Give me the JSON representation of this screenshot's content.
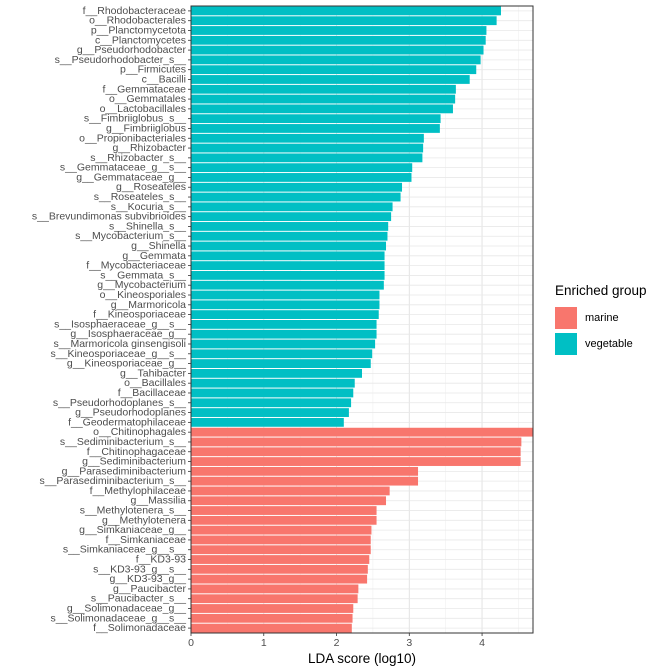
{
  "chart_data": {
    "type": "bar",
    "orientation": "horizontal",
    "xlabel": "LDA score (log10)",
    "ylabel": "",
    "xlim": [
      0,
      4.7
    ],
    "xticks": [
      0,
      1,
      2,
      3,
      4
    ],
    "grid": true,
    "legend": {
      "title": "Enriched group",
      "position": "right",
      "entries": [
        {
          "name": "marine",
          "color": "#F8766D"
        },
        {
          "name": "vegetable",
          "color": "#00BFC4"
        }
      ]
    },
    "bars": [
      {
        "label": "f__Rhodobacteraceae",
        "value": 4.26,
        "group": "vegetable"
      },
      {
        "label": "o__Rhodobacterales",
        "value": 4.2,
        "group": "vegetable"
      },
      {
        "label": "p__Planctomycetota",
        "value": 4.06,
        "group": "vegetable"
      },
      {
        "label": "c__Planctomycetes",
        "value": 4.05,
        "group": "vegetable"
      },
      {
        "label": "g__Pseudorhodobacter",
        "value": 4.02,
        "group": "vegetable"
      },
      {
        "label": "s__Pseudorhodobacter_s__",
        "value": 3.98,
        "group": "vegetable"
      },
      {
        "label": "p__Firmicutes",
        "value": 3.92,
        "group": "vegetable"
      },
      {
        "label": "c__Bacilli",
        "value": 3.83,
        "group": "vegetable"
      },
      {
        "label": "f__Gemmataceae",
        "value": 3.64,
        "group": "vegetable"
      },
      {
        "label": "o__Gemmatales",
        "value": 3.63,
        "group": "vegetable"
      },
      {
        "label": "o__Lactobacillales",
        "value": 3.6,
        "group": "vegetable"
      },
      {
        "label": "s__Fimbriiglobus_s__",
        "value": 3.43,
        "group": "vegetable"
      },
      {
        "label": "g__Fimbriiglobus",
        "value": 3.42,
        "group": "vegetable"
      },
      {
        "label": "o__Propionibacteriales",
        "value": 3.2,
        "group": "vegetable"
      },
      {
        "label": "g__Rhizobacter",
        "value": 3.19,
        "group": "vegetable"
      },
      {
        "label": "s__Rhizobacter_s__",
        "value": 3.18,
        "group": "vegetable"
      },
      {
        "label": "s__Gemmataceae_g__s__",
        "value": 3.04,
        "group": "vegetable"
      },
      {
        "label": "g__Gemmataceae_g__",
        "value": 3.03,
        "group": "vegetable"
      },
      {
        "label": "g__Roseateles",
        "value": 2.9,
        "group": "vegetable"
      },
      {
        "label": "s__Roseateles_s__",
        "value": 2.88,
        "group": "vegetable"
      },
      {
        "label": "s__Kocuria_s__",
        "value": 2.77,
        "group": "vegetable"
      },
      {
        "label": "s__Brevundimonas subvibrioides",
        "value": 2.75,
        "group": "vegetable"
      },
      {
        "label": "s__Shinella_s__",
        "value": 2.71,
        "group": "vegetable"
      },
      {
        "label": "s__Mycobacterium_s__",
        "value": 2.7,
        "group": "vegetable"
      },
      {
        "label": "g__Shinella",
        "value": 2.68,
        "group": "vegetable"
      },
      {
        "label": "g__Gemmata",
        "value": 2.66,
        "group": "vegetable"
      },
      {
        "label": "f__Mycobacteriaceae",
        "value": 2.66,
        "group": "vegetable"
      },
      {
        "label": "s__Gemmata_s__",
        "value": 2.66,
        "group": "vegetable"
      },
      {
        "label": "g__Mycobacterium",
        "value": 2.65,
        "group": "vegetable"
      },
      {
        "label": "o__Kineosporiales",
        "value": 2.59,
        "group": "vegetable"
      },
      {
        "label": "g__Marmoricola",
        "value": 2.59,
        "group": "vegetable"
      },
      {
        "label": "f__Kineosporiaceae",
        "value": 2.58,
        "group": "vegetable"
      },
      {
        "label": "s__Isosphaeraceae_g__s__",
        "value": 2.55,
        "group": "vegetable"
      },
      {
        "label": "g__Isosphaeraceae_g__",
        "value": 2.55,
        "group": "vegetable"
      },
      {
        "label": "s__Marmoricola ginsengisoli",
        "value": 2.53,
        "group": "vegetable"
      },
      {
        "label": "s__Kineosporiaceae_g__s__",
        "value": 2.49,
        "group": "vegetable"
      },
      {
        "label": "g__Kineosporiaceae_g__",
        "value": 2.47,
        "group": "vegetable"
      },
      {
        "label": "g__Tahibacter",
        "value": 2.35,
        "group": "vegetable"
      },
      {
        "label": "o__Bacillales",
        "value": 2.25,
        "group": "vegetable"
      },
      {
        "label": "f__Bacillaceae",
        "value": 2.23,
        "group": "vegetable"
      },
      {
        "label": "s__Pseudorhodoplanes_s__",
        "value": 2.2,
        "group": "vegetable"
      },
      {
        "label": "g__Pseudorhodoplanes",
        "value": 2.17,
        "group": "vegetable"
      },
      {
        "label": "f__Geodermatophilaceae",
        "value": 2.1,
        "group": "vegetable"
      },
      {
        "label": "o__Chitinophagales",
        "value": 4.7,
        "group": "marine"
      },
      {
        "label": "s__Sediminibacterium_s__",
        "value": 4.54,
        "group": "marine"
      },
      {
        "label": "f__Chitinophagaceae",
        "value": 4.53,
        "group": "marine"
      },
      {
        "label": "g__Sediminibacterium",
        "value": 4.53,
        "group": "marine"
      },
      {
        "label": "g__Parasediminibacterium",
        "value": 3.12,
        "group": "marine"
      },
      {
        "label": "s__Parasediminibacterium_s__",
        "value": 3.12,
        "group": "marine"
      },
      {
        "label": "f__Methylophilaceae",
        "value": 2.73,
        "group": "marine"
      },
      {
        "label": "g__Massilia",
        "value": 2.68,
        "group": "marine"
      },
      {
        "label": "s__Methylotenera_s__",
        "value": 2.55,
        "group": "marine"
      },
      {
        "label": "g__Methylotenera",
        "value": 2.55,
        "group": "marine"
      },
      {
        "label": "g__Simkaniaceae_g__",
        "value": 2.48,
        "group": "marine"
      },
      {
        "label": "f__Simkaniaceae",
        "value": 2.47,
        "group": "marine"
      },
      {
        "label": "s__Simkaniaceae_g__s__",
        "value": 2.47,
        "group": "marine"
      },
      {
        "label": "f__KD3-93",
        "value": 2.45,
        "group": "marine"
      },
      {
        "label": "s__KD3-93_g__s__",
        "value": 2.43,
        "group": "marine"
      },
      {
        "label": "g__KD3-93_g__",
        "value": 2.42,
        "group": "marine"
      },
      {
        "label": "g__Paucibacter",
        "value": 2.3,
        "group": "marine"
      },
      {
        "label": "s__Paucibacter_s__",
        "value": 2.29,
        "group": "marine"
      },
      {
        "label": "g__Solimonadaceae_g__",
        "value": 2.23,
        "group": "marine"
      },
      {
        "label": "s__Solimonadaceae_g__s__",
        "value": 2.22,
        "group": "marine"
      },
      {
        "label": "f__Solimonadaceae",
        "value": 2.21,
        "group": "marine"
      }
    ]
  }
}
